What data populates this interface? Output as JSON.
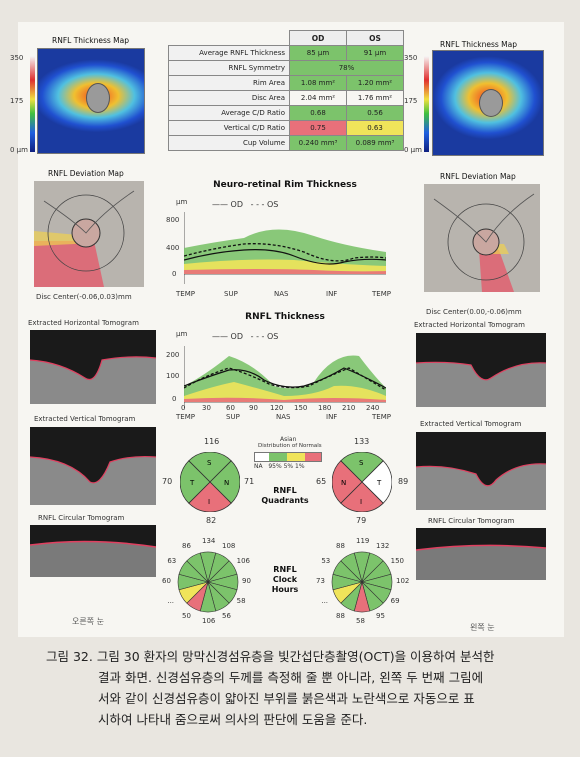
{
  "left": {
    "thickness_title": "RNFL Thickness Map",
    "scale": [
      "350",
      "175",
      "0 μm"
    ],
    "deviation_title": "RNFL Deviation Map",
    "disc_center": "Disc Center(-0.06,0.03)mm",
    "horiz_tomo": "Extracted Horizontal Tomogram",
    "vert_tomo": "Extracted Vertical Tomogram",
    "circ_tomo": "RNFL Circular Tomogram",
    "eye_label": "오른쪽 눈"
  },
  "right": {
    "thickness_title": "RNFL Thickness Map",
    "scale": [
      "350",
      "175",
      "0 μm"
    ],
    "deviation_title": "RNFL Deviation Map",
    "disc_center": "Disc Center(0.00,-0.06)mm",
    "horiz_tomo": "Extracted Horizontal Tomogram",
    "vert_tomo": "Extracted Vertical Tomogram",
    "circ_tomo": "RNFL Circular Tomogram",
    "eye_label": "왼쪽 눈"
  },
  "table": {
    "headers": [
      "",
      "OD",
      "OS"
    ],
    "rows": [
      {
        "name": "Average RNFL Thickness",
        "od": "85 μm",
        "os": "91 μm",
        "od_color": "green",
        "os_color": "green"
      },
      {
        "name": "RNFL Symmetry",
        "merged": "78%",
        "color": "green"
      },
      {
        "name": "Rim Area",
        "od": "1.08 mm²",
        "os": "1.20 mm²",
        "od_color": "green",
        "os_color": "green"
      },
      {
        "name": "Disc Area",
        "od": "2.04 mm²",
        "os": "1.76 mm²",
        "od_color": "",
        "os_color": ""
      },
      {
        "name": "Average C/D Ratio",
        "od": "0.68",
        "os": "0.56",
        "od_color": "",
        "os_color": ""
      },
      {
        "name": "Vertical C/D Ratio",
        "od": "0.75",
        "os": "0.63",
        "od_color": "red",
        "os_color": "yellow"
      },
      {
        "name": "Cup Volume",
        "od": "0.240 mm³",
        "os": "0.089 mm³",
        "od_color": "",
        "os_color": "green"
      }
    ]
  },
  "rim_chart": {
    "title": "Neuro-retinal Rim Thickness",
    "unit": "μm",
    "legend_od": "OD",
    "legend_os": "OS",
    "y_ticks": [
      "800",
      "400",
      "0"
    ],
    "x_ticks": [
      "TEMP",
      "SUP",
      "NAS",
      "INF",
      "TEMP"
    ]
  },
  "rnfl_chart": {
    "title": "RNFL Thickness",
    "unit": "μm",
    "legend_od": "OD",
    "legend_os": "OS",
    "y_ticks": [
      "200",
      "100",
      "0"
    ],
    "x_ticks": [
      "0",
      "30",
      "60",
      "90",
      "120",
      "150",
      "180",
      "210",
      "240"
    ],
    "x_labels": [
      "TEMP",
      "SUP",
      "NAS",
      "INF",
      "TEMP"
    ]
  },
  "normals": {
    "title": "Asian",
    "subtitle": "Distribution of Normals",
    "labels": [
      "NA",
      "95%",
      "5%",
      "1%"
    ],
    "colors": [
      "#ffffff",
      "#7cc36b",
      "#f0e45a",
      "#e8707a"
    ]
  },
  "quadrants": {
    "title_line1": "RNFL",
    "title_line2": "Quadrants",
    "od": {
      "S": "116",
      "N": "71",
      "I": "82",
      "T": "70",
      "colors": {
        "S": "#7cc36b",
        "N": "#7cc36b",
        "I": "#e8707a",
        "T": "#7cc36b"
      }
    },
    "os": {
      "S": "133",
      "N": "65",
      "I": "79",
      "T": "89",
      "colors": {
        "S": "#7cc36b",
        "N": "#e8707a",
        "I": "#e8707a",
        "T": "#ffffff"
      }
    },
    "letters": {
      "S": "S",
      "N": "N",
      "I": "I",
      "T": "T"
    }
  },
  "clock": {
    "title_line1": "RNFL",
    "title_line2": "Clock",
    "title_line3": "Hours",
    "od_values": [
      "134",
      "108",
      "106",
      "90",
      "58",
      "56",
      "106",
      "50",
      "...",
      "60",
      "63",
      "86"
    ],
    "os_values": [
      "119",
      "132",
      "150",
      "102",
      "69",
      "95",
      "58",
      "88",
      "...",
      "73",
      "53",
      "88"
    ],
    "od_colors": [
      "#7cc36b",
      "#7cc36b",
      "#7cc36b",
      "#7cc36b",
      "#7cc36b",
      "#7cc36b",
      "#7cc36b",
      "#e8707a",
      "#f0e45a",
      "#7cc36b",
      "#7cc36b",
      "#7cc36b"
    ],
    "os_colors": [
      "#7cc36b",
      "#7cc36b",
      "#7cc36b",
      "#7cc36b",
      "#7cc36b",
      "#7cc36b",
      "#e8707a",
      "#7cc36b",
      "#f0e45a",
      "#7cc36b",
      "#7cc36b",
      "#7cc36b"
    ]
  },
  "caption": {
    "line1": "그림 32. 그림 30 환자의 망막신경섬유층을 빛간섭단층촬영(OCT)을 이용하여 분석한",
    "line2": "결과 화면. 신경섬유층의 두께를 측정해 줄 뿐 아니라, 왼쪽 두 번째 그림에",
    "line3": "서와 같이 신경섬유층이 얇아진 부위를 붉은색과 노란색으로 자동으로 표",
    "line4": "시하여 나타내 줌으로써 의사의 판단에 도움을 준다."
  }
}
